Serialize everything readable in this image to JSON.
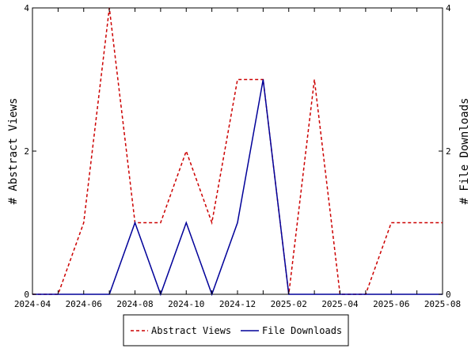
{
  "chart_data": {
    "type": "line",
    "x": [
      "2024-04",
      "2024-05",
      "2024-06",
      "2024-07",
      "2024-08",
      "2024-09",
      "2024-10",
      "2024-11",
      "2024-12",
      "2025-01",
      "2025-02",
      "2025-03",
      "2025-04",
      "2025-05",
      "2025-06",
      "2025-07",
      "2025-08"
    ],
    "x_tick_labels": [
      "2024-04",
      "2024-06",
      "2024-08",
      "2024-10",
      "2024-12",
      "2025-02",
      "2025-04",
      "2025-06",
      "2025-08"
    ],
    "series": [
      {
        "name": "Abstract Views",
        "color": "#cc0000",
        "dash": "dashed",
        "axis": "left",
        "values": [
          0,
          0,
          1,
          4,
          1,
          1,
          2,
          1,
          3,
          3,
          0,
          3,
          0,
          0,
          1,
          1,
          1
        ]
      },
      {
        "name": "File Downloads",
        "color": "#000099",
        "dash": "solid",
        "axis": "right",
        "values": [
          0,
          0,
          0,
          0,
          1,
          0,
          1,
          0,
          1,
          3,
          0,
          0,
          0,
          0,
          0,
          0,
          0
        ]
      }
    ],
    "ylabel_left": "# Abstract Views",
    "ylabel_right": "# File Downloads",
    "ylim_left": [
      0,
      4
    ],
    "ylim_right": [
      0,
      4
    ],
    "y_ticks_left": [
      0,
      2,
      4
    ],
    "y_ticks_right": [
      0,
      2,
      4
    ],
    "legend_position": "bottom-center",
    "grid": false
  }
}
